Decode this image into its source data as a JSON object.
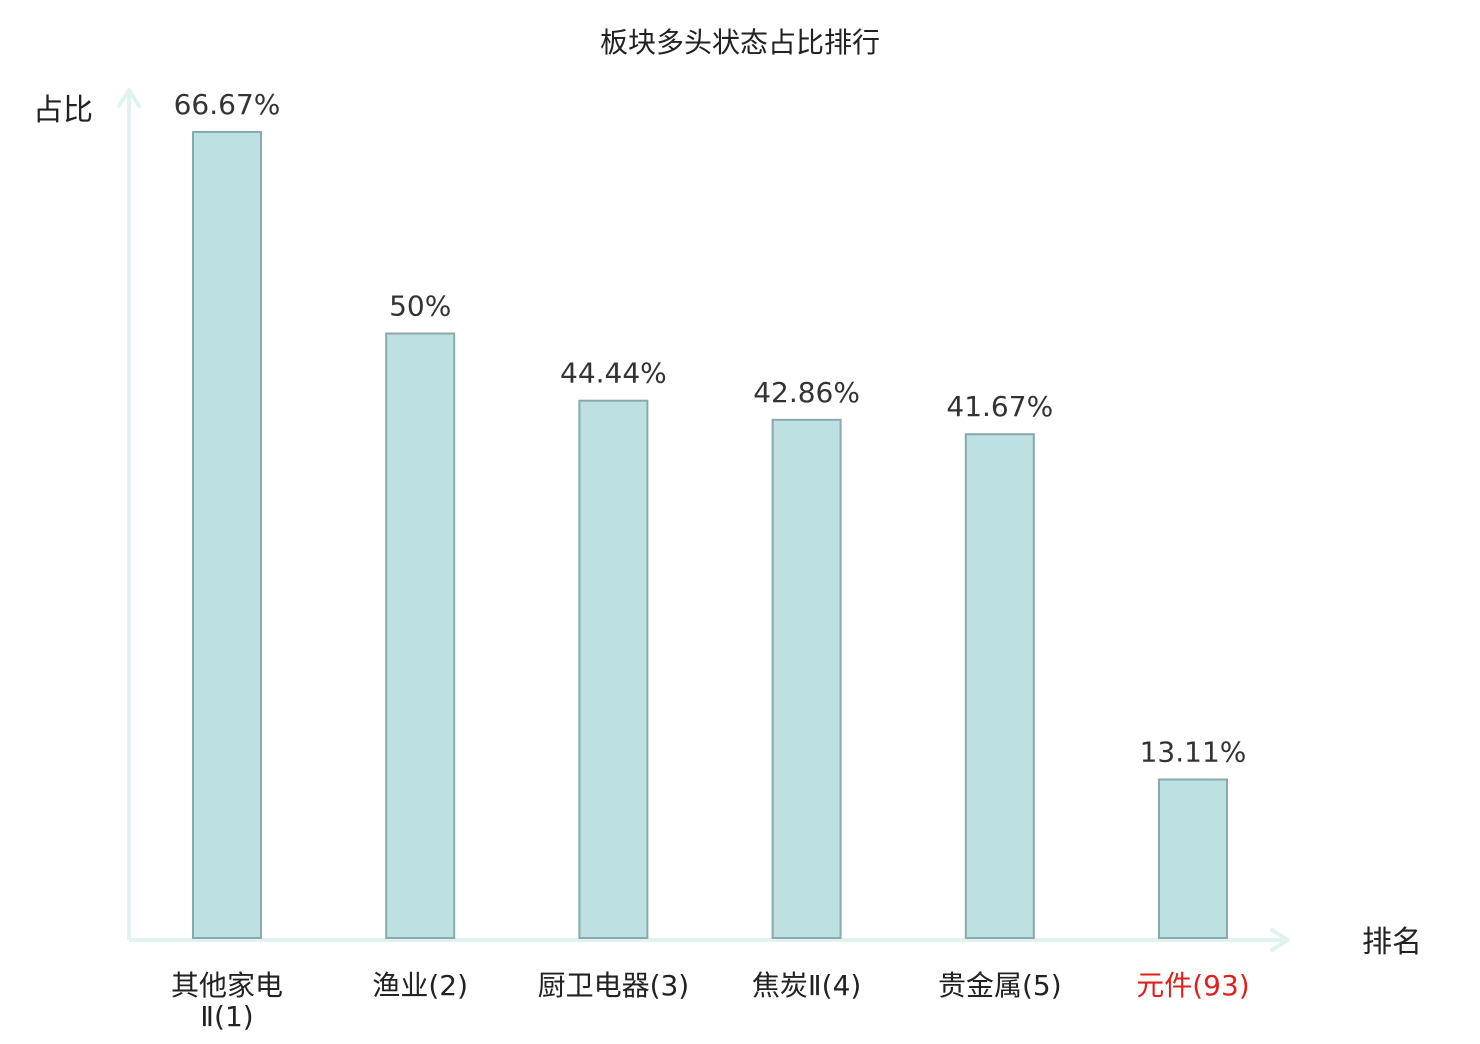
{
  "chart_data": {
    "type": "bar",
    "title": "板块多头状态占比排行",
    "ylabel": "占比",
    "xlabel": "排名",
    "categories": [
      {
        "name": "其他家电",
        "sub": "Ⅱ(1)",
        "highlight": false
      },
      {
        "name": "渔业(2)",
        "highlight": false
      },
      {
        "name": "厨卫电器(3)",
        "highlight": false
      },
      {
        "name": "焦炭Ⅱ(4)",
        "highlight": false
      },
      {
        "name": "贵金属(5)",
        "highlight": false
      },
      {
        "name": "元件(93)",
        "highlight": true
      }
    ],
    "values": [
      66.67,
      50,
      44.44,
      42.86,
      41.67,
      13.11
    ],
    "value_labels": [
      "66.67%",
      "50%",
      "44.44%",
      "42.86%",
      "41.67%",
      "13.11%"
    ],
    "ylim": [
      0,
      66.67
    ],
    "grid": false,
    "colors": {
      "bar_fill": "#bde0e2",
      "bar_stroke": "#8aa9ab",
      "axis": "#e0f3f1",
      "text": "#222222",
      "value_text": "#333333",
      "highlight_text": "#e0201b"
    }
  }
}
